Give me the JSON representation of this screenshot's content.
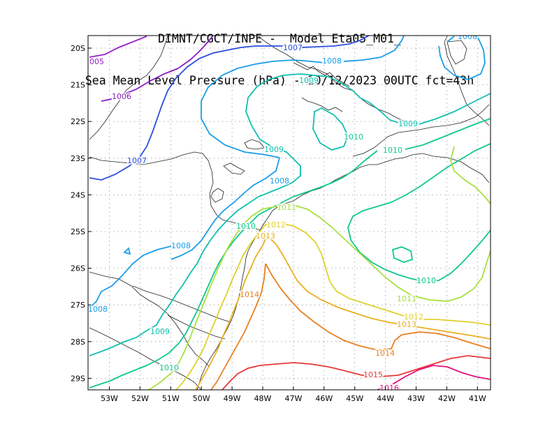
{
  "header": {
    "title_line1": "DIMNT/CGCT/INPE -  Model Eta05_M01_",
    "title_line2": "Sea Mean Level Pressure (hPa) - 10/12/2023 00UTC fct=43h"
  },
  "axes": {
    "lon_labels": [
      "53W",
      "52W",
      "51W",
      "50W",
      "49W",
      "48W",
      "47W",
      "46W",
      "45W",
      "44W",
      "43W",
      "42W",
      "41W"
    ],
    "lat_labels": [
      "20S",
      "21S",
      "22S",
      "23S",
      "24S",
      "25S",
      "26S",
      "27S",
      "28S",
      "29S"
    ]
  },
  "contour_colors": {
    "1005": "#9b20c8",
    "1006": "#8a1cc4",
    "1007": "#2a4ee0",
    "1008": "#1a9ee8",
    "1009": "#10c0b0",
    "1010": "#10c890",
    "1011": "#a8e040",
    "1012": "#e0d030",
    "1013": "#e8b020",
    "1014": "#e88020",
    "1015": "#e83838",
    "1016": "#e0107a"
  },
  "contour_labels": [
    {
      "id": "l1005",
      "text": "005",
      "level": "1005"
    },
    {
      "id": "l1006",
      "text": "1006",
      "level": "1006"
    },
    {
      "id": "l1007a",
      "text": "1007",
      "level": "1007"
    },
    {
      "id": "l1007b",
      "text": "1007",
      "level": "1007"
    },
    {
      "id": "l1008a",
      "text": "1008",
      "level": "1008"
    },
    {
      "id": "l1008b",
      "text": "1008",
      "level": "1008"
    },
    {
      "id": "l1008c",
      "text": "1008",
      "level": "1008"
    },
    {
      "id": "l1008d",
      "text": "1008",
      "level": "1008"
    },
    {
      "id": "l1008e",
      "text": "1008",
      "level": "1008"
    },
    {
      "id": "l1009a",
      "text": "1009",
      "level": "1009"
    },
    {
      "id": "l1009b",
      "text": "1009",
      "level": "1009"
    },
    {
      "id": "l1009c",
      "text": "1009",
      "level": "1009"
    },
    {
      "id": "l1009d",
      "text": "1009",
      "level": "1009"
    },
    {
      "id": "l1010a",
      "text": "1010",
      "level": "1010"
    },
    {
      "id": "l1010b",
      "text": "1010",
      "level": "1010"
    },
    {
      "id": "l1010c",
      "text": "1010",
      "level": "1010"
    },
    {
      "id": "l1010d",
      "text": "1010",
      "level": "1010"
    },
    {
      "id": "l1010e",
      "text": "1010",
      "level": "1010"
    },
    {
      "id": "l1011a",
      "text": "1011",
      "level": "1011"
    },
    {
      "id": "l1011b",
      "text": "1011",
      "level": "1011"
    },
    {
      "id": "l1012a",
      "text": "1012",
      "level": "1012"
    },
    {
      "id": "l1012b",
      "text": "1012",
      "level": "1012"
    },
    {
      "id": "l1013a",
      "text": "1013",
      "level": "1013"
    },
    {
      "id": "l1013b",
      "text": "1013",
      "level": "1013"
    },
    {
      "id": "l1014a",
      "text": "1014",
      "level": "1014"
    },
    {
      "id": "l1014b",
      "text": "1014",
      "level": "1014"
    },
    {
      "id": "l1015",
      "text": "1015",
      "level": "1015"
    },
    {
      "id": "l1016",
      "text": "1016",
      "level": "1016"
    }
  ]
}
